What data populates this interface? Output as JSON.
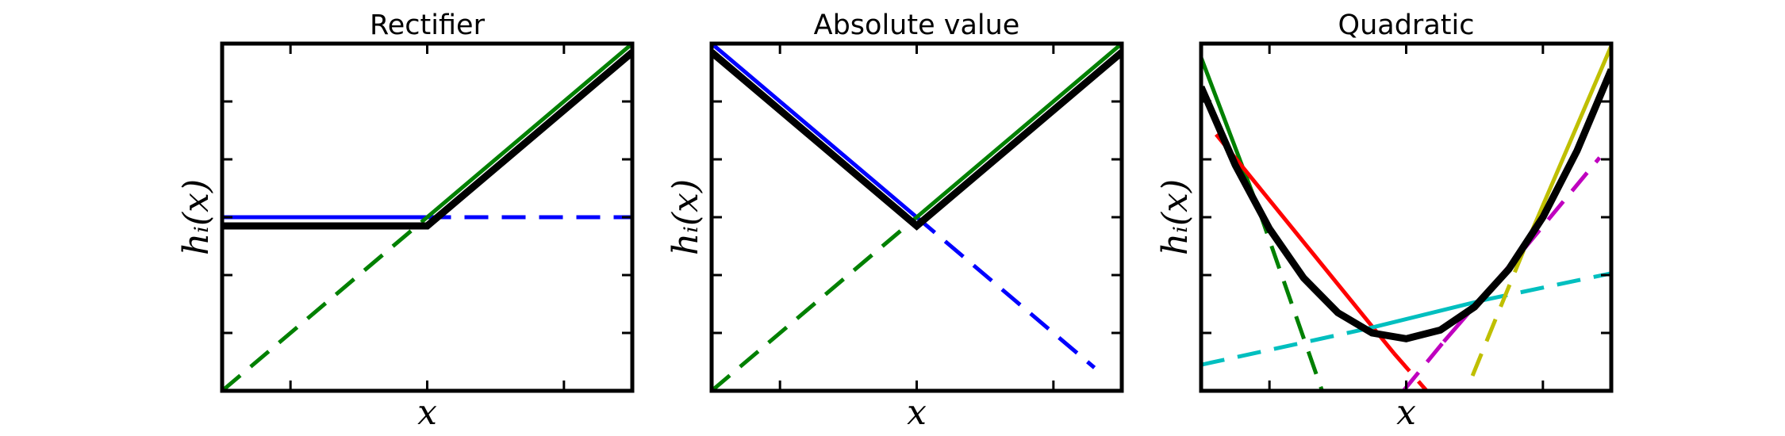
{
  "chart_data": [
    {
      "type": "line",
      "title": "Rectifier",
      "xlabel": "x",
      "ylabel": "hᵢ(x)",
      "xlim": [
        0,
        6
      ],
      "ylim": [
        0,
        6
      ],
      "xticks": [
        1,
        3,
        5
      ],
      "yticks": [
        1,
        2,
        3,
        4,
        5
      ],
      "series": [
        {
          "color": "#0000ff",
          "style": "solid",
          "linewidth": 5,
          "x": [
            0,
            3
          ],
          "values": [
            3,
            3
          ]
        },
        {
          "color": "#0000ff",
          "style": "dashed",
          "linewidth": 5,
          "x": [
            3,
            6
          ],
          "values": [
            3,
            3
          ]
        },
        {
          "color": "#008000",
          "style": "dashed",
          "linewidth": 5,
          "x": [
            0,
            3
          ],
          "values": [
            0,
            3
          ]
        },
        {
          "color": "#008000",
          "style": "solid",
          "linewidth": 5,
          "x": [
            3,
            6
          ],
          "values": [
            3,
            6
          ]
        },
        {
          "color": "#000000",
          "style": "solid",
          "linewidth": 9,
          "x": [
            0,
            3,
            6
          ],
          "values": [
            2.85,
            2.85,
            5.85
          ]
        }
      ]
    },
    {
      "type": "line",
      "title": "Absolute value",
      "xlabel": "x",
      "ylabel": "hᵢ(x)",
      "xlim": [
        0,
        6
      ],
      "ylim": [
        0,
        6
      ],
      "xticks": [
        1,
        3,
        5
      ],
      "yticks": [
        1,
        2,
        3,
        4,
        5
      ],
      "series": [
        {
          "color": "#0000ff",
          "style": "solid",
          "linewidth": 5,
          "x": [
            0,
            3
          ],
          "values": [
            6,
            3
          ]
        },
        {
          "color": "#0000ff",
          "style": "dashed",
          "linewidth": 5,
          "x": [
            3,
            5.6
          ],
          "values": [
            3,
            0.4
          ]
        },
        {
          "color": "#008000",
          "style": "dashed",
          "linewidth": 5,
          "x": [
            0,
            3
          ],
          "values": [
            0,
            3
          ]
        },
        {
          "color": "#008000",
          "style": "solid",
          "linewidth": 5,
          "x": [
            3,
            6
          ],
          "values": [
            3,
            6
          ]
        },
        {
          "color": "#000000",
          "style": "solid",
          "linewidth": 9,
          "x": [
            0,
            3,
            6
          ],
          "values": [
            5.85,
            2.85,
            5.85
          ]
        }
      ]
    },
    {
      "type": "line",
      "title": "Quadratic",
      "xlabel": "x",
      "ylabel": "hᵢ(x)",
      "xlim": [
        0,
        6
      ],
      "ylim": [
        0,
        6
      ],
      "xticks": [
        1,
        3,
        5
      ],
      "yticks": [
        1,
        2,
        3,
        4,
        5
      ],
      "series": [
        {
          "color": "#008000",
          "style": "solid",
          "linewidth": 5,
          "x": [
            0,
            0.85
          ],
          "values": [
            5.76,
            3.11
          ]
        },
        {
          "color": "#008000",
          "style": "dashed",
          "linewidth": 5,
          "x": [
            0.85,
            1.77
          ],
          "values": [
            3.11,
            0
          ]
        },
        {
          "color": "#ff0000",
          "style": "solid",
          "linewidth": 5,
          "x": [
            0.22,
            2.82
          ],
          "values": [
            4.43,
            0.65
          ]
        },
        {
          "color": "#ff0000",
          "style": "dashed",
          "linewidth": 5,
          "x": [
            2.82,
            3.3
          ],
          "values": [
            0.65,
            0
          ]
        },
        {
          "color": "#00bfbf",
          "style": "dashed",
          "linewidth": 5,
          "x": [
            0,
            2.45
          ],
          "values": [
            0.45,
            1.08
          ]
        },
        {
          "color": "#00bfbf",
          "style": "solid",
          "linewidth": 5,
          "x": [
            2.45,
            4.14
          ],
          "values": [
            1.08,
            1.57
          ]
        },
        {
          "color": "#00bfbf",
          "style": "dashed",
          "linewidth": 5,
          "x": [
            4.14,
            6
          ],
          "values": [
            1.57,
            2.03
          ]
        },
        {
          "color": "#bf00bf",
          "style": "dashed",
          "linewidth": 5,
          "x": [
            2.96,
            3.55
          ],
          "values": [
            0,
            0.85
          ]
        },
        {
          "color": "#bf00bf",
          "style": "solid",
          "linewidth": 5,
          "x": [
            3.55,
            4.73
          ],
          "values": [
            0.85,
            2.46
          ]
        },
        {
          "color": "#bf00bf",
          "style": "dashed",
          "linewidth": 5,
          "x": [
            4.73,
            5.83
          ],
          "values": [
            2.46,
            4.03
          ]
        },
        {
          "color": "#bfbf00",
          "style": "dashed",
          "linewidth": 5,
          "x": [
            3.97,
            4.73
          ],
          "values": [
            0.26,
            2.46
          ]
        },
        {
          "color": "#bfbf00",
          "style": "solid",
          "linewidth": 5,
          "x": [
            4.73,
            6
          ],
          "values": [
            2.46,
            5.96
          ]
        },
        {
          "color": "#000000",
          "style": "solid",
          "linewidth": 9,
          "x": [
            0,
            0.5,
            1,
            1.5,
            2,
            2.5,
            3,
            3.5,
            4,
            4.5,
            5,
            5.5,
            6
          ],
          "values": [
            5.25,
            3.9,
            2.8,
            1.95,
            1.35,
            1.0,
            0.9,
            1.05,
            1.45,
            2.1,
            3.0,
            4.15,
            5.55
          ]
        }
      ]
    }
  ]
}
